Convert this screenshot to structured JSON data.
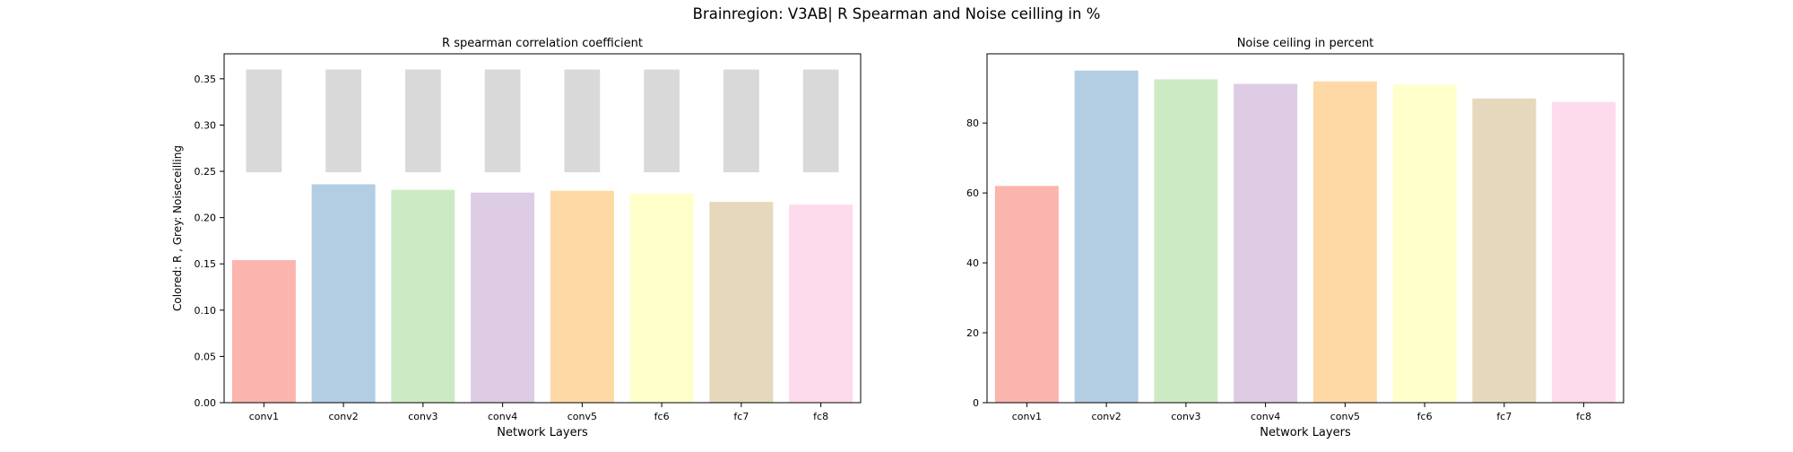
{
  "figure": {
    "suptitle": "Brainregion: V3AB| R Spearman and Noise ceilling in %"
  },
  "chart_data": [
    {
      "type": "bar",
      "title": "R spearman correlation coefficient",
      "xlabel": "Network Layers",
      "ylabel": "Colored: R , Grey: Noiseceilling",
      "categories": [
        "conv1",
        "conv2",
        "conv3",
        "conv4",
        "conv5",
        "fc6",
        "fc7",
        "fc8"
      ],
      "ylim": [
        0,
        0.377
      ],
      "yticks": [
        0.0,
        0.05,
        0.1,
        0.15,
        0.2,
        0.25,
        0.3,
        0.35
      ],
      "ytick_labels": [
        "0.00",
        "0.05",
        "0.10",
        "0.15",
        "0.20",
        "0.25",
        "0.30",
        "0.35"
      ],
      "series": [
        {
          "values": [
            0.154,
            0.236,
            0.23,
            0.227,
            0.229,
            0.226,
            0.217,
            0.214
          ],
          "colors": [
            "#fbb4ae",
            "#b3cde3",
            "#ccebc5",
            "#decbe4",
            "#fed9a6",
            "#ffffcc",
            "#e5d8bd",
            "#fddaec"
          ]
        },
        {
          "range_low": [
            0.249,
            0.249,
            0.249,
            0.249,
            0.249,
            0.249,
            0.249,
            0.249
          ],
          "range_high": [
            0.36,
            0.36,
            0.36,
            0.36,
            0.36,
            0.36,
            0.36,
            0.36
          ],
          "color": "#d9d9d9"
        }
      ],
      "grid": false
    },
    {
      "type": "bar",
      "title": "Noise ceiling in percent",
      "xlabel": "Network Layers",
      "ylabel": "",
      "categories": [
        "conv1",
        "conv2",
        "conv3",
        "conv4",
        "conv5",
        "fc6",
        "fc7",
        "fc8"
      ],
      "ylim": [
        0,
        99.8
      ],
      "yticks": [
        0,
        20,
        40,
        60,
        80
      ],
      "ytick_labels": [
        "0",
        "20",
        "40",
        "60",
        "80"
      ],
      "series": [
        {
          "values": [
            62.0,
            95.0,
            92.5,
            91.2,
            91.9,
            91.0,
            87.0,
            86.0
          ],
          "colors": [
            "#fbb4ae",
            "#b3cde3",
            "#ccebc5",
            "#decbe4",
            "#fed9a6",
            "#ffffcc",
            "#e5d8bd",
            "#fddaec"
          ]
        }
      ],
      "grid": false
    }
  ]
}
